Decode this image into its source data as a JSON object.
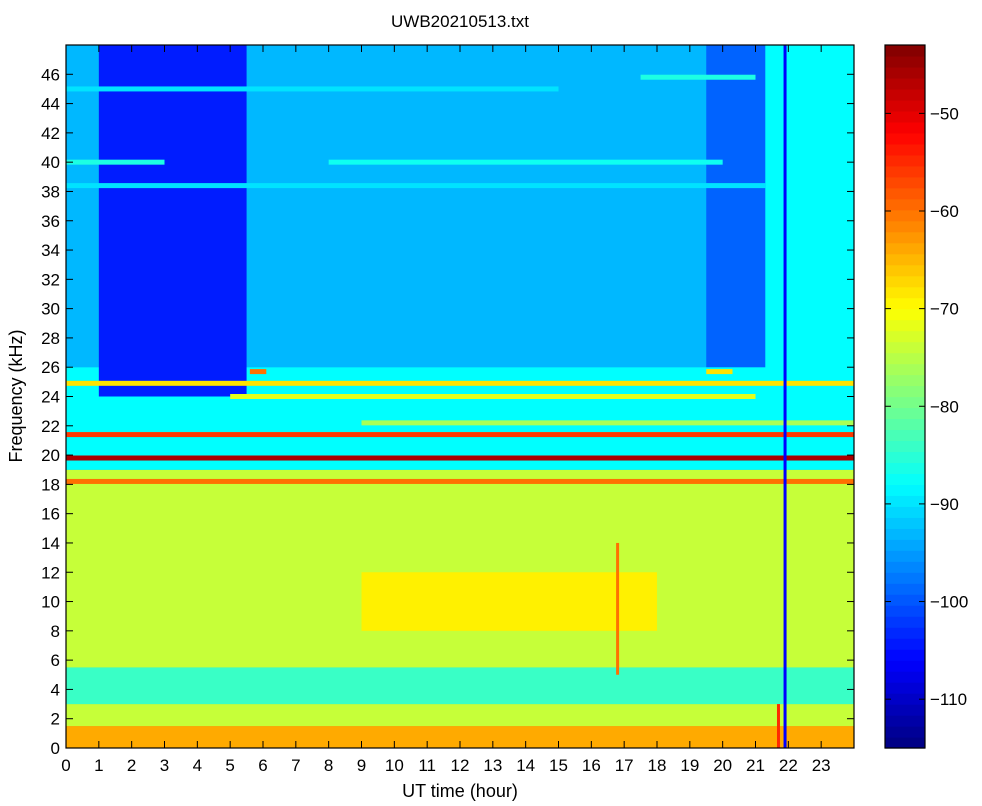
{
  "chart_data": {
    "type": "heatmap",
    "title": "UWB20210513.txt",
    "xlabel": "UT time (hour)",
    "ylabel": "Frequency (kHz)",
    "xlim": [
      0,
      24
    ],
    "ylim": [
      0,
      48
    ],
    "x_ticks": [
      0,
      1,
      2,
      3,
      4,
      5,
      6,
      7,
      8,
      9,
      10,
      11,
      12,
      13,
      14,
      15,
      16,
      17,
      18,
      19,
      20,
      21,
      22,
      23
    ],
    "y_ticks": [
      0,
      2,
      4,
      6,
      8,
      10,
      12,
      14,
      16,
      18,
      20,
      22,
      24,
      26,
      28,
      30,
      32,
      34,
      36,
      38,
      40,
      42,
      44,
      46
    ],
    "colorbar": {
      "colormap": "jet",
      "range": [
        -115,
        -43
      ],
      "ticks": [
        -110,
        -100,
        -90,
        -80,
        -70,
        -60,
        -50
      ]
    },
    "background_levels": [
      {
        "freq_range": [
          0,
          1.5
        ],
        "time_range": [
          0,
          24
        ],
        "level": -64
      },
      {
        "freq_range": [
          1.5,
          3
        ],
        "time_range": [
          0,
          24
        ],
        "level": -74
      },
      {
        "freq_range": [
          3,
          5.5
        ],
        "time_range": [
          0,
          24
        ],
        "level": -84
      },
      {
        "freq_range": [
          5.5,
          19
        ],
        "time_range": [
          0,
          24
        ],
        "level": -74
      },
      {
        "freq_range": [
          8,
          12
        ],
        "time_range": [
          9,
          18
        ],
        "level": -69
      },
      {
        "freq_range": [
          19,
          26
        ],
        "time_range": [
          0,
          24
        ],
        "level": -88
      },
      {
        "freq_range": [
          26,
          48
        ],
        "time_range": [
          0,
          24
        ],
        "level": -93
      },
      {
        "freq_range": [
          24,
          48
        ],
        "time_range": [
          1,
          5.5
        ],
        "level": -104
      },
      {
        "freq_range": [
          26,
          48
        ],
        "time_range": [
          19.5,
          21.3
        ],
        "level": -99
      },
      {
        "freq_range": [
          25,
          48
        ],
        "time_range": [
          21.3,
          24
        ],
        "level": -88
      }
    ],
    "emission_lines": [
      {
        "freq": 19.8,
        "time_range": [
          0,
          24
        ],
        "level": -46
      },
      {
        "freq": 21.4,
        "time_range": [
          0,
          24
        ],
        "level": -56
      },
      {
        "freq": 18.2,
        "time_range": [
          0,
          24
        ],
        "level": -60
      },
      {
        "freq": 24.9,
        "time_range": [
          0,
          24
        ],
        "level": -68
      },
      {
        "freq": 24.0,
        "time_range": [
          5,
          21
        ],
        "level": -72
      },
      {
        "freq": 22.2,
        "time_range": [
          9,
          24
        ],
        "level": -76
      },
      {
        "freq": 25.7,
        "time_range": [
          5.6,
          6.1
        ],
        "level": -60
      },
      {
        "freq": 25.7,
        "time_range": [
          19.5,
          20.3
        ],
        "level": -68
      },
      {
        "freq": 40.0,
        "time_range": [
          0,
          3
        ],
        "level": -86
      },
      {
        "freq": 40.0,
        "time_range": [
          8,
          20
        ],
        "level": -87
      },
      {
        "freq": 45.8,
        "time_range": [
          17.5,
          21
        ],
        "level": -86
      },
      {
        "freq": 45.0,
        "time_range": [
          0,
          15
        ],
        "level": -90
      },
      {
        "freq": 38.4,
        "time_range": [
          0,
          21.3
        ],
        "level": -90
      }
    ],
    "broadband_events": [
      {
        "time": 21.9,
        "freq_range": [
          0,
          48
        ],
        "level": -106
      },
      {
        "time": 21.7,
        "freq_range": [
          0,
          3
        ],
        "level": -55
      },
      {
        "time": 16.8,
        "freq_range": [
          5,
          14
        ],
        "level": -60
      }
    ]
  }
}
